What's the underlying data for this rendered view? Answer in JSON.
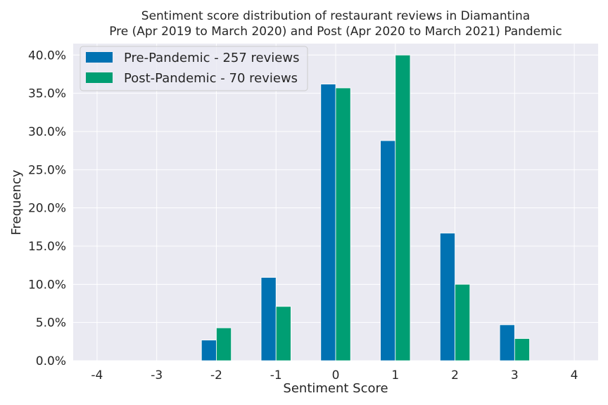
{
  "chart_data": {
    "type": "bar",
    "title": "Sentiment score distribution of restaurant reviews in Diamantina",
    "subtitle": "Pre (Apr 2019 to March 2020) and Post (Apr 2020 to March 2021) Pandemic",
    "xlabel": "Sentiment Score",
    "ylabel": "Frequency",
    "x_ticks": [
      "-4",
      "-3",
      "-2",
      "-1",
      "0",
      "1",
      "2",
      "3",
      "4"
    ],
    "xlim": [
      -4.4,
      4.4
    ],
    "ylim": [
      0,
      0.415
    ],
    "y_ticks": [
      0,
      0.05,
      0.1,
      0.15,
      0.2,
      0.25,
      0.3,
      0.35,
      0.4
    ],
    "y_tick_labels": [
      "0.0%",
      "5.0%",
      "10.0%",
      "15.0%",
      "20.0%",
      "25.0%",
      "30.0%",
      "35.0%",
      "40.0%"
    ],
    "grid": true,
    "legend_position": "top-left",
    "series": [
      {
        "name": "Pre-Pandemic - 257 reviews",
        "color": "#0072B2",
        "x": [
          -2,
          -1,
          0,
          1,
          2,
          3
        ],
        "values": [
          0.027,
          0.109,
          0.362,
          0.288,
          0.167,
          0.047
        ]
      },
      {
        "name": "Post-Pandemic - 70 reviews",
        "color": "#009E73",
        "x": [
          -2,
          -1,
          0,
          1,
          2,
          3
        ],
        "values": [
          0.043,
          0.071,
          0.357,
          0.4,
          0.1,
          0.029
        ]
      }
    ]
  },
  "colors": {
    "plot_background": "#EAEAF2",
    "grid": "#FFFFFF",
    "text": "#262626"
  }
}
